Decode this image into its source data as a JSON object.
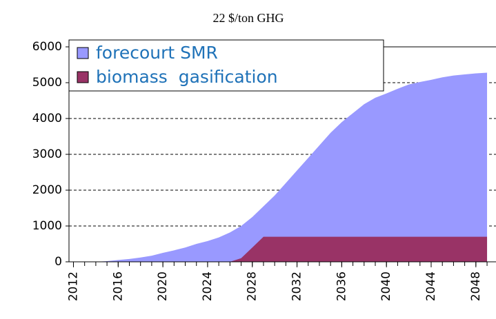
{
  "chart_data": {
    "type": "area",
    "title": "22 $/ton GHG",
    "x": [
      2012,
      2013,
      2014,
      2015,
      2016,
      2017,
      2018,
      2019,
      2020,
      2021,
      2022,
      2023,
      2024,
      2025,
      2026,
      2027,
      2028,
      2029,
      2030,
      2031,
      2032,
      2033,
      2034,
      2035,
      2036,
      2037,
      2038,
      2039,
      2040,
      2041,
      2042,
      2043,
      2044,
      2045,
      2046,
      2047,
      2048,
      2049
    ],
    "series": [
      {
        "name": "forecourt SMR",
        "color": "#9999ff",
        "values": [
          0,
          0,
          0,
          20,
          50,
          80,
          120,
          170,
          250,
          320,
          400,
          500,
          580,
          680,
          820,
          1000,
          1250,
          1550,
          1850,
          2200,
          2550,
          2900,
          3250,
          3600,
          3900,
          4150,
          4400,
          4580,
          4700,
          4830,
          4950,
          5020,
          5080,
          5150,
          5200,
          5230,
          5260,
          5280
        ]
      },
      {
        "name": "biomass  gasification",
        "color": "#993366",
        "values": [
          0,
          0,
          0,
          0,
          0,
          0,
          0,
          0,
          0,
          0,
          0,
          0,
          0,
          0,
          0,
          100,
          400,
          700,
          700,
          700,
          700,
          700,
          700,
          700,
          700,
          700,
          700,
          700,
          700,
          700,
          700,
          700,
          700,
          700,
          700,
          700,
          700,
          700
        ]
      }
    ],
    "xlim": [
      2011.6,
      2049.8
    ],
    "xticks": [
      2012,
      2016,
      2020,
      2024,
      2028,
      2032,
      2036,
      2040,
      2044,
      2048
    ],
    "ylim": [
      0,
      6000
    ],
    "yticks": [
      0,
      1000,
      2000,
      3000,
      4000,
      5000,
      6000
    ],
    "grid": true,
    "legend": "upper left"
  }
}
